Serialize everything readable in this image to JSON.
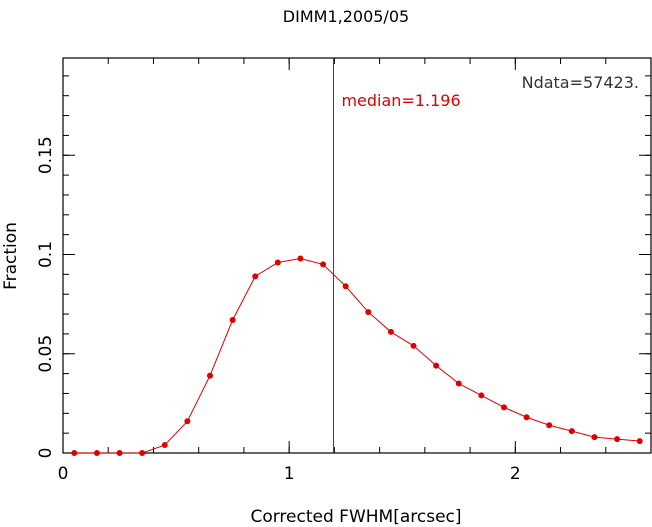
{
  "chart_data": {
    "type": "line",
    "title": "DIMM1,2005/05",
    "xlabel": "Corrected FWHM[arcsec]",
    "ylabel": "Fraction",
    "xlim": [
      0,
      2.6
    ],
    "ylim": [
      0,
      0.199
    ],
    "x_ticks": [
      {
        "value": 0,
        "label": "0"
      },
      {
        "value": 1,
        "label": "1"
      },
      {
        "value": 2,
        "label": "2"
      }
    ],
    "y_ticks": [
      {
        "value": 0,
        "label": "0"
      },
      {
        "value": 0.05,
        "label": "0.05"
      },
      {
        "value": 0.1,
        "label": "0.1"
      },
      {
        "value": 0.15,
        "label": "0.15"
      }
    ],
    "x_minor_step": 0.2,
    "y_minor_step": 0.01,
    "grid": false,
    "series": [
      {
        "color": "#e00000",
        "x": [
          0.05,
          0.15,
          0.25,
          0.35,
          0.45,
          0.55,
          0.65,
          0.75,
          0.85,
          0.95,
          1.05,
          1.15,
          1.25,
          1.35,
          1.45,
          1.55,
          1.65,
          1.75,
          1.85,
          1.95,
          2.05,
          2.15,
          2.25,
          2.35,
          2.45,
          2.55
        ],
        "y": [
          0,
          0,
          0,
          0,
          0.004,
          0.016,
          0.039,
          0.067,
          0.089,
          0.096,
          0.098,
          0.095,
          0.084,
          0.071,
          0.061,
          0.054,
          0.044,
          0.035,
          0.029,
          0.023,
          0.018,
          0.014,
          0.011,
          0.008,
          0.007,
          0.006
        ]
      }
    ],
    "median_line": {
      "x": 1.196,
      "color": "#e00000",
      "label": "median=1.196"
    },
    "annotations": [
      {
        "text": "Ndata=57423.",
        "color": "#333333"
      }
    ]
  }
}
